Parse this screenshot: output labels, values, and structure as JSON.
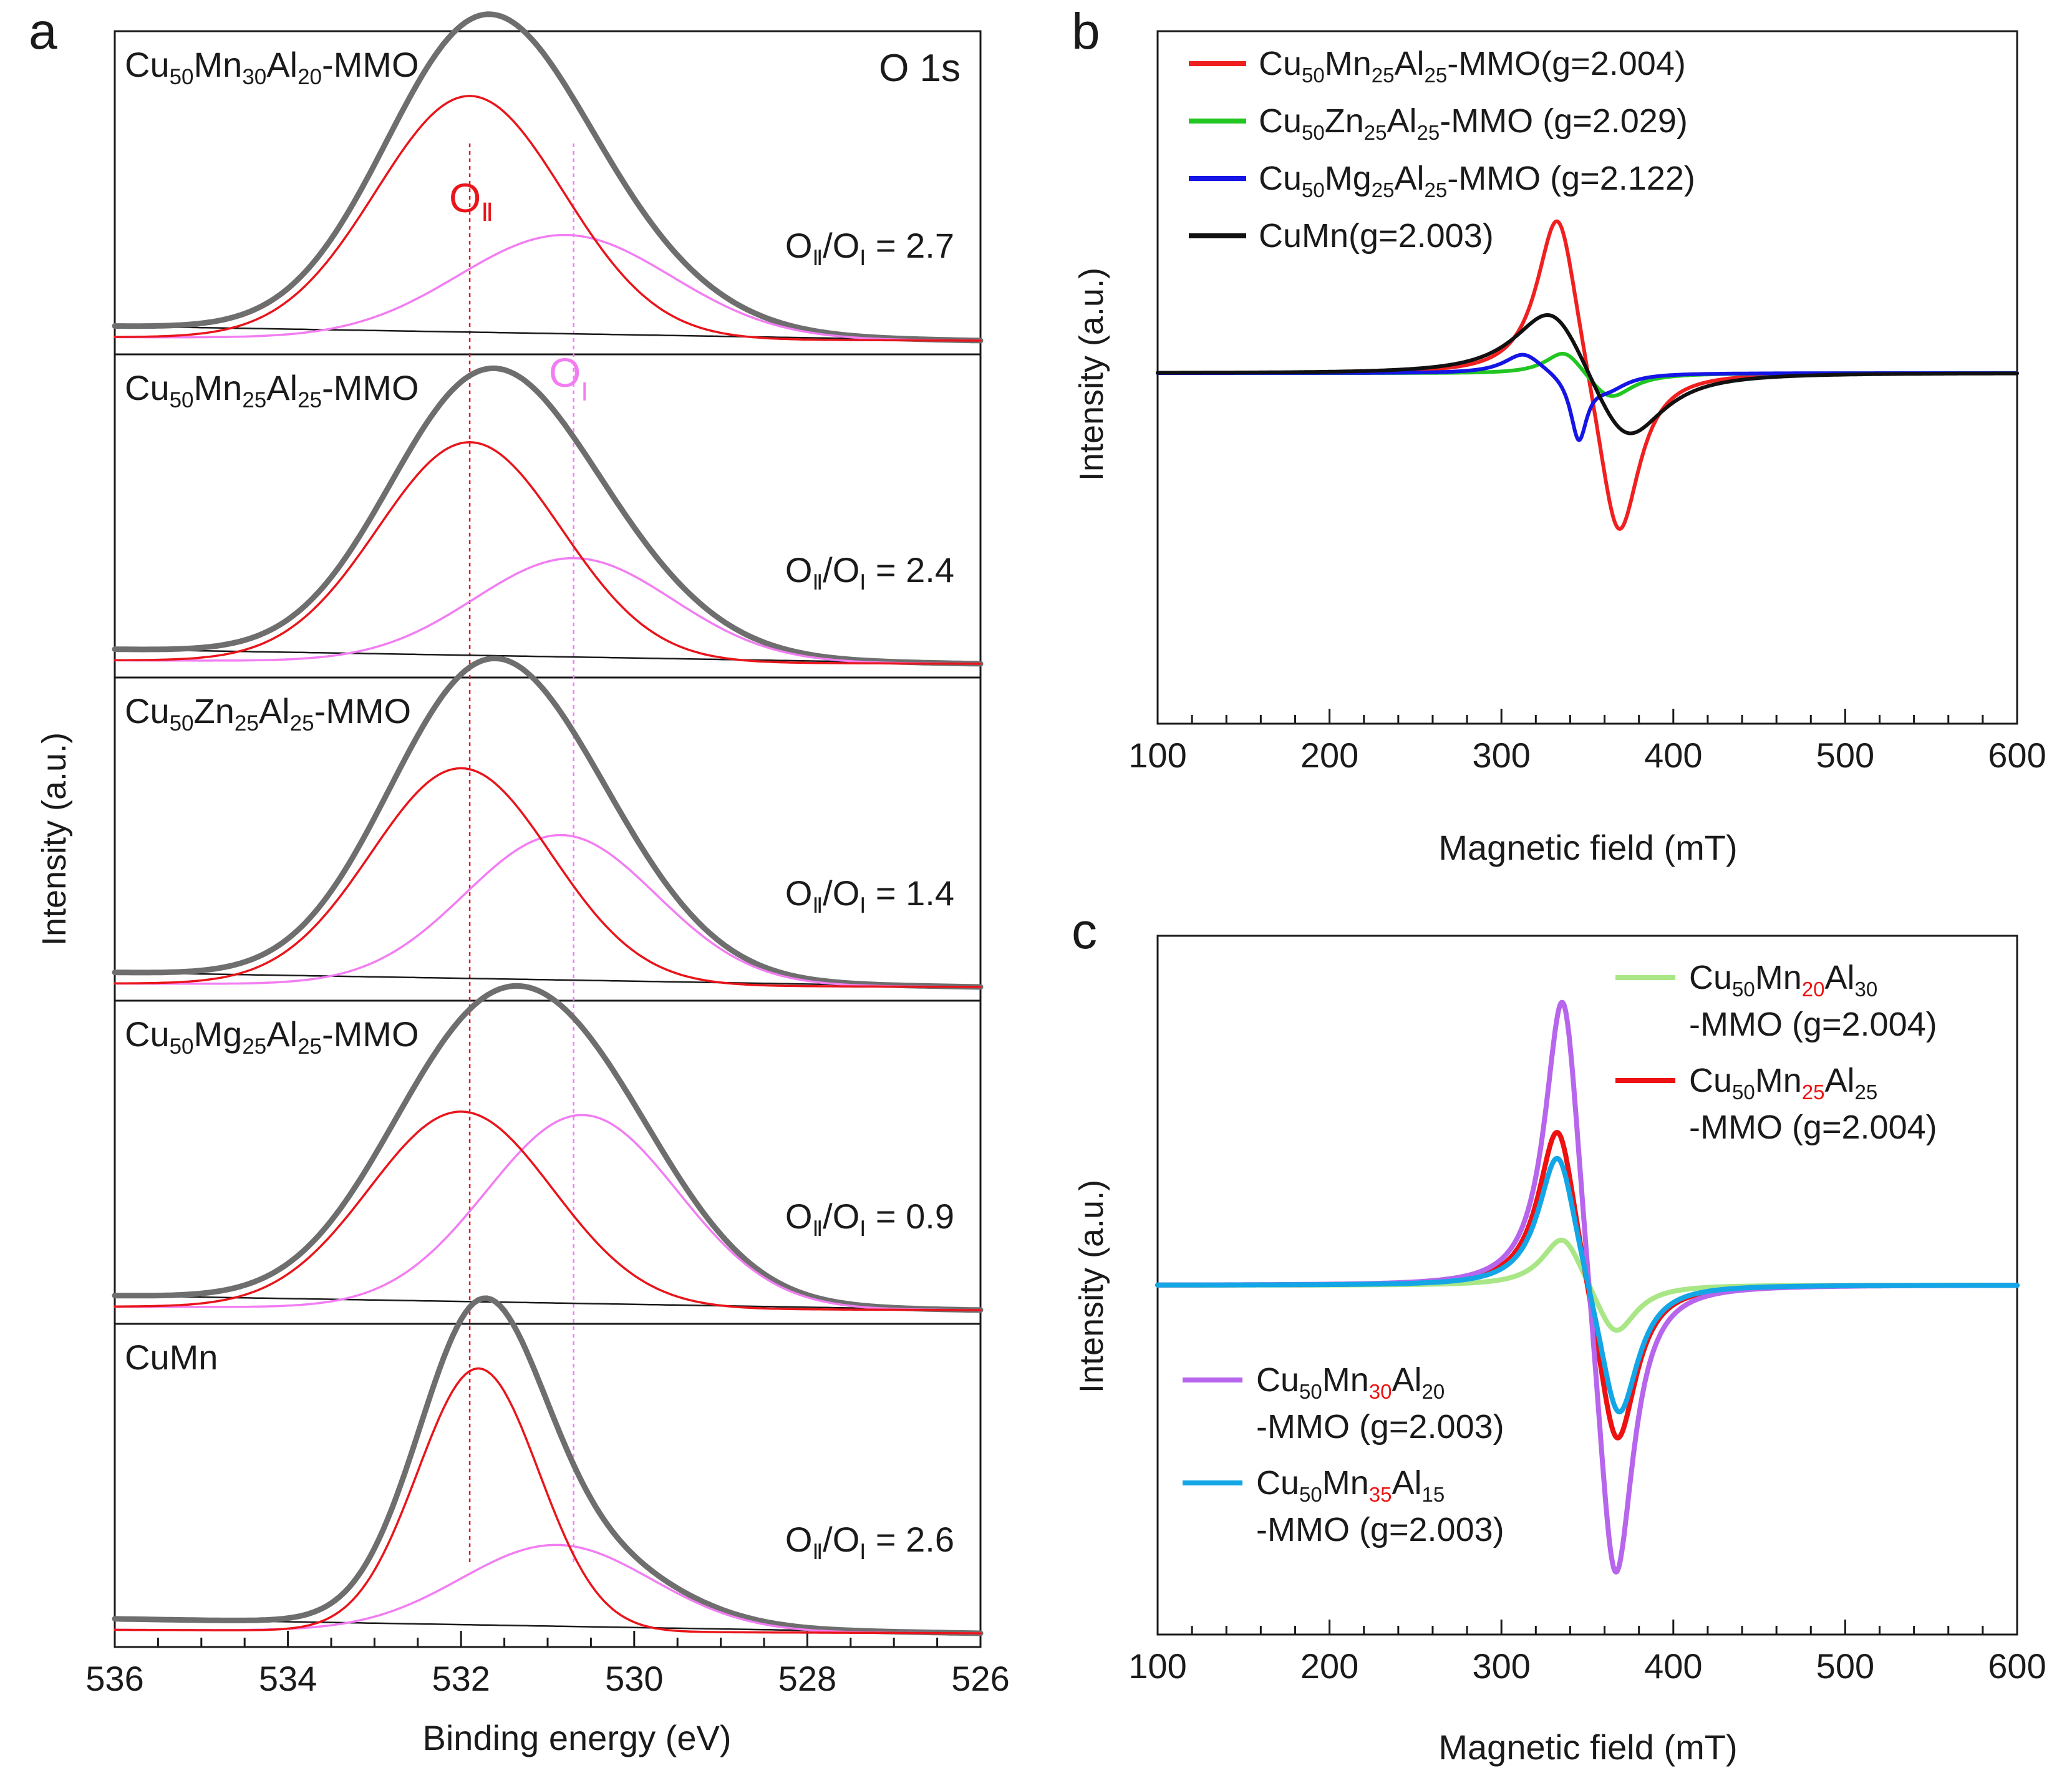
{
  "chart_data": [
    {
      "panel": "a",
      "type": "line",
      "xlabel": "Binding energy (eV)",
      "ylabel": "Intensity (a.u.)",
      "annotation": "O 1s",
      "xlim": [
        536,
        526
      ],
      "x_ticks": [
        "536",
        "534",
        "532",
        "530",
        "528",
        "526"
      ],
      "peak_labels": {
        "o2": {
          "main": "O",
          "sub": "Ⅱ"
        },
        "o1": {
          "main": "O",
          "sub": "Ⅰ"
        }
      },
      "reference_lines": [
        {
          "name": "O_II",
          "x": 531.9,
          "color": "#e8151b"
        },
        {
          "name": "O_I",
          "x": 530.7,
          "color": "#f27df2"
        }
      ],
      "ratio_label": {
        "o2": "O",
        "sub2": "Ⅱ",
        "sep": "/O",
        "sub1": "Ⅰ",
        "eq": " = "
      },
      "colors": {
        "envelope": "#6e6e6e",
        "o2": "#e8151b",
        "o1": "#f27df2",
        "baseline": "#1a1a1a"
      },
      "series": [
        {
          "name": {
            "parts": [
              [
                "Cu",
                ""
              ],
              [
                "50",
                "sub"
              ],
              [
                "Mn",
                ""
              ],
              [
                "30",
                "sub"
              ],
              [
                "Al",
                ""
              ],
              [
                "20",
                "sub"
              ],
              [
                "-MMO",
                ""
              ]
            ]
          },
          "ratio": "2.7",
          "o2": {
            "center": 531.9,
            "height": 0.84,
            "fwhm": 2.55
          },
          "o1": {
            "center": 530.8,
            "height": 0.36,
            "fwhm": 2.9
          },
          "baseline": [
            0.06,
            0.0
          ]
        },
        {
          "name": {
            "parts": [
              [
                "Cu",
                ""
              ],
              [
                "50",
                "sub"
              ],
              [
                "Mn",
                ""
              ],
              [
                "25",
                "sub"
              ],
              [
                "Al",
                ""
              ],
              [
                "25",
                "sub"
              ],
              [
                "-MMO",
                ""
              ]
            ]
          },
          "ratio": "2.4",
          "o2": {
            "center": 531.9,
            "height": 0.76,
            "fwhm": 2.5
          },
          "o1": {
            "center": 530.7,
            "height": 0.36,
            "fwhm": 2.7
          },
          "baseline": [
            0.05,
            0.0
          ]
        },
        {
          "name": {
            "parts": [
              [
                "Cu",
                ""
              ],
              [
                "50",
                "sub"
              ],
              [
                "Zn",
                ""
              ],
              [
                "25",
                "sub"
              ],
              [
                "Al",
                ""
              ],
              [
                "25",
                "sub"
              ],
              [
                "-MMO",
                ""
              ]
            ]
          },
          "ratio": "1.4",
          "o2": {
            "center": 532.0,
            "height": 0.75,
            "fwhm": 2.45
          },
          "o1": {
            "center": 530.85,
            "height": 0.52,
            "fwhm": 2.6
          },
          "baseline": [
            0.05,
            0.0
          ]
        },
        {
          "name": {
            "parts": [
              [
                "Cu",
                ""
              ],
              [
                "50",
                "sub"
              ],
              [
                "Mg",
                ""
              ],
              [
                "25",
                "sub"
              ],
              [
                "Al",
                ""
              ],
              [
                "25",
                "sub"
              ],
              [
                "-MMO",
                ""
              ]
            ]
          },
          "ratio": "0.9",
          "o2": {
            "center": 532.0,
            "height": 0.68,
            "fwhm": 2.5
          },
          "o1": {
            "center": 530.6,
            "height": 0.67,
            "fwhm": 2.6
          },
          "baseline": [
            0.04,
            0.0
          ]
        },
        {
          "name": {
            "parts": [
              [
                "CuMn",
                ""
              ]
            ]
          },
          "ratio": "2.6",
          "o2": {
            "center": 531.8,
            "height": 0.91,
            "fwhm": 1.65
          },
          "o1": {
            "center": 530.9,
            "height": 0.3,
            "fwhm": 2.6
          },
          "baseline": [
            0.05,
            0.0
          ]
        }
      ]
    },
    {
      "panel": "b",
      "type": "line",
      "xlabel": "Magnetic field (mT)",
      "ylabel": "Intensity (a.u.)",
      "xlim": [
        100,
        600
      ],
      "x_ticks": [
        "100",
        "200",
        "300",
        "400",
        "500",
        "600"
      ],
      "legend_position": "top-left",
      "series": [
        {
          "name": {
            "parts": [
              [
                "Cu",
                ""
              ],
              [
                "50",
                "sub"
              ],
              [
                "Mn",
                ""
              ],
              [
                "25",
                "sub"
              ],
              [
                "Al",
                ""
              ],
              [
                "25",
                "sub"
              ],
              [
                "-MMO(g=2.004)",
                ""
              ]
            ]
          },
          "color": "#f02020",
          "peaks": [
            [
              333,
              1.0,
              15
            ],
            [
              368,
              -1.02,
              15
            ]
          ]
        },
        {
          "name": {
            "parts": [
              [
                "Cu",
                ""
              ],
              [
                "50",
                "sub"
              ],
              [
                "Zn",
                ""
              ],
              [
                "25",
                "sub"
              ],
              [
                "Al",
                ""
              ],
              [
                "25",
                "sub"
              ],
              [
                "-MMO (g=2.029)",
                ""
              ]
            ]
          },
          "color": "#22c622",
          "peaks": [
            [
              337,
              0.15,
              14
            ],
            [
              363,
              -0.16,
              16
            ]
          ]
        },
        {
          "name": {
            "parts": [
              [
                "Cu",
                ""
              ],
              [
                "50",
                "sub"
              ],
              [
                "Mg",
                ""
              ],
              [
                "25",
                "sub"
              ],
              [
                "Al",
                ""
              ],
              [
                "25",
                "sub"
              ],
              [
                "-MMO (g=2.122)",
                ""
              ]
            ]
          },
          "color": "#1515e6",
          "peaks": [
            [
              313,
              0.12,
              14
            ],
            [
              345,
              -0.36,
              6
            ],
            [
              362,
              -0.08,
              14
            ]
          ]
        },
        {
          "name": {
            "parts": [
              [
                "CuMn(g=2.003)",
                ""
              ]
            ]
          },
          "color": "#111111",
          "peaks": [
            [
              330,
              0.45,
              27
            ],
            [
              372,
              -0.46,
              27
            ]
          ]
        }
      ]
    },
    {
      "panel": "c",
      "type": "line",
      "xlabel": "Magnetic field (mT)",
      "ylabel": "Intensity (a.u.)",
      "xlim": [
        100,
        600
      ],
      "x_ticks": [
        "100",
        "200",
        "300",
        "400",
        "500",
        "600"
      ],
      "series": [
        {
          "name": {
            "parts": [
              [
                "Cu",
                ""
              ],
              [
                "50",
                "sub"
              ],
              [
                "Mn",
                ""
              ],
              [
                "20",
                "subred"
              ],
              [
                "Al",
                ""
              ],
              [
                "30",
                "sub"
              ]
            ]
          },
          "name2": "-MMO (g=2.004)",
          "color": "#a9e685",
          "peaks": [
            [
              336,
              0.16,
              15
            ],
            [
              366,
              -0.16,
              15
            ]
          ]
        },
        {
          "name": {
            "parts": [
              [
                "Cu",
                ""
              ],
              [
                "50",
                "sub"
              ],
              [
                "Mn",
                ""
              ],
              [
                "25",
                "subred"
              ],
              [
                "Al",
                ""
              ],
              [
                "25",
                "sub"
              ]
            ]
          },
          "name2": "-MMO (g=2.004)",
          "color": "#ee1111",
          "peaks": [
            [
              333,
              0.51,
              14
            ],
            [
              367,
              -0.51,
              14
            ]
          ]
        },
        {
          "name": {
            "parts": [
              [
                "Cu",
                ""
              ],
              [
                "50",
                "sub"
              ],
              [
                "Mn",
                ""
              ],
              [
                "30",
                "subred"
              ],
              [
                "Al",
                ""
              ],
              [
                "20",
                "sub"
              ]
            ]
          },
          "name2": "-MMO (g=2.003)",
          "color": "#b765ec",
          "peaks": [
            [
              336,
              0.96,
              13
            ],
            [
              366,
              -0.97,
              13
            ]
          ]
        },
        {
          "name": {
            "parts": [
              [
                "Cu",
                ""
              ],
              [
                "50",
                "sub"
              ],
              [
                "Mn",
                ""
              ],
              [
                "35",
                "subred"
              ],
              [
                "Al",
                ""
              ],
              [
                "15",
                "sub"
              ]
            ]
          },
          "name2": "-MMO (g=2.003)",
          "color": "#13a6e6",
          "peaks": [
            [
              333,
              0.42,
              14
            ],
            [
              368,
              -0.42,
              14
            ]
          ]
        }
      ]
    }
  ],
  "panel_labels": [
    "a",
    "b",
    "c"
  ]
}
